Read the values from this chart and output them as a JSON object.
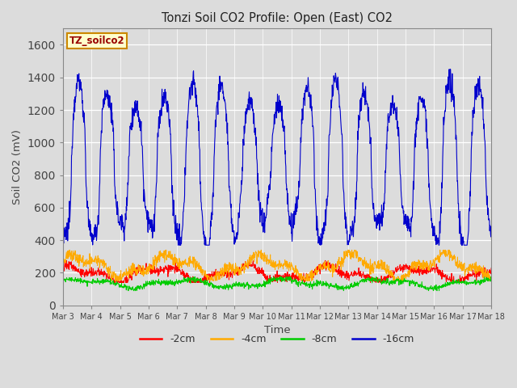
{
  "title": "Tonzi Soil CO2 Profile: Open (East) CO2",
  "ylabel": "Soil CO2 (mV)",
  "xlabel": "Time",
  "ylim": [
    0,
    1700
  ],
  "yticks": [
    0,
    200,
    400,
    600,
    800,
    1000,
    1200,
    1400,
    1600
  ],
  "bg_color": "#dcdcdc",
  "plot_bg_color": "#dcdcdc",
  "legend_label": "TZ_soilco2",
  "legend_box_facecolor": "#ffffcc",
  "legend_box_edgecolor": "#cc8800",
  "series_labels": [
    "-2cm",
    "-4cm",
    "-8cm",
    "-16cm"
  ],
  "series_colors": [
    "#ff0000",
    "#ffaa00",
    "#00cc00",
    "#0000cc"
  ],
  "n_days": 15,
  "start_day": 3,
  "xtick_labels": [
    "Mar 3",
    "Mar 4",
    "Mar 5",
    "Mar 6",
    "Mar 7",
    "Mar 8",
    "Mar 9",
    "Mar 10",
    "Mar 11",
    "Mar 12",
    "Mar 13",
    "Mar 14",
    "Mar 15",
    "Mar 16",
    "Mar 17",
    "Mar 18"
  ],
  "points_per_day": 96
}
